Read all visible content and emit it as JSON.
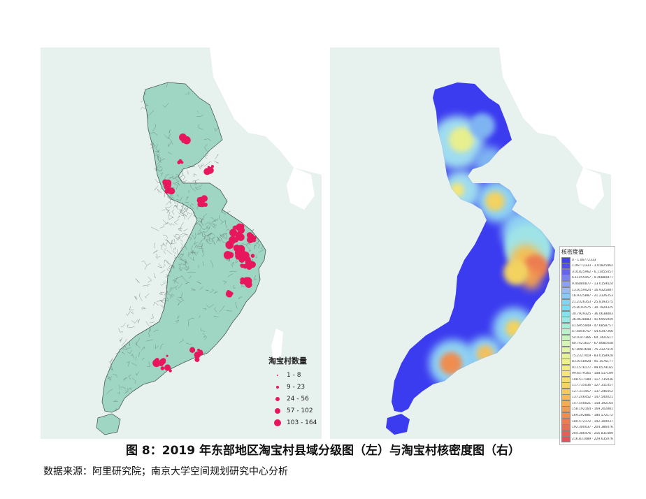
{
  "left_map": {
    "legend_title": "淘宝村数量",
    "legend_items": [
      {
        "label": "1 - 8",
        "size": 2
      },
      {
        "label": "9 - 23",
        "size": 4
      },
      {
        "label": "24 - 56",
        "size": 6
      },
      {
        "label": "57 - 102",
        "size": 8
      },
      {
        "label": "103 - 164",
        "size": 10
      }
    ],
    "colors": {
      "land": "#9fd6c3",
      "boundary": "#5a6d63",
      "dots": "#e8175d",
      "sea": "#e7f1ee",
      "neighbor": "#ffffff"
    }
  },
  "right_map": {
    "legend_title": "核密度值",
    "legend_items": [
      {
        "label": "0 - 1.06772333",
        "color": "#4242e6"
      },
      {
        "label": "1.06772333 - 3.01825962",
        "color": "#5050e8"
      },
      {
        "label": "3.01825962 - 6.11455457",
        "color": "#6565ea"
      },
      {
        "label": "6.11455457 - 9.46880877",
        "color": "#7a82ec"
      },
      {
        "label": "9.46880877 - 13.0159424",
        "color": "#8ea0ee"
      },
      {
        "label": "13.0159424 - 16.9325887",
        "color": "#9db9f0"
      },
      {
        "label": "16.9325887 - 21.2326353",
        "color": "#8fc8f2"
      },
      {
        "label": "21.2326353 - 25.8193575",
        "color": "#7fd5f5"
      },
      {
        "label": "25.8193575 - 30.7929325",
        "color": "#78ddf3"
      },
      {
        "label": "30.7929325 - 36.0638883",
        "color": "#86e3ee"
      },
      {
        "label": "36.0638883 - 41.6955949",
        "color": "#98e8e4"
      },
      {
        "label": "41.6955949 - 47.6858757",
        "color": "#abeed8"
      },
      {
        "label": "47.6858757 - 54.0347366",
        "color": "#bdf1cb"
      },
      {
        "label": "54.0347366 - 60.7421617",
        "color": "#cbf3bf"
      },
      {
        "label": "60.7421617 - 67.8081648",
        "color": "#d6f4b4"
      },
      {
        "label": "67.8081648 - 75.2327419",
        "color": "#e0f3a7"
      },
      {
        "label": "75.2327419 - 83.0158928",
        "color": "#e8f29b"
      },
      {
        "label": "83.0158928 - 91.1576177",
        "color": "#eef08f"
      },
      {
        "label": "91.1576177 - 99.6579165",
        "color": "#f2ec84"
      },
      {
        "label": "99.6579165 - 108.517189",
        "color": "#f4e678"
      },
      {
        "label": "108.517189 - 117.735036",
        "color": "#f5de6c"
      },
      {
        "label": "117.735036 - 127.311457",
        "color": "#f5d462"
      },
      {
        "label": "127.311457 - 137.246452",
        "color": "#f5c95a"
      },
      {
        "label": "137.246452 - 147.540021",
        "color": "#f4bb55"
      },
      {
        "label": "147.540021 - 158.192164",
        "color": "#f3ac52"
      },
      {
        "label": "158.192164 - 169.202881",
        "color": "#f19d51"
      },
      {
        "label": "169.202881 - 180.572172",
        "color": "#ef8d50"
      },
      {
        "label": "180.572172 - 192.300037",
        "color": "#ec7d51"
      },
      {
        "label": "192.300037 - 204.386476",
        "color": "#e86e54"
      },
      {
        "label": "204.386476 - 216.831489",
        "color": "#e46057"
      },
      {
        "label": "216.831489 - 229.635076",
        "color": "#e0545b"
      }
    ],
    "colors": {
      "land": "#3b3bf0",
      "sea": "#e7f1ee",
      "neighbor": "#ffffff"
    }
  },
  "caption": "图 8：2019 年东部地区淘宝村县域分级图（左）与淘宝村核密度图（右）",
  "source": "数据来源：阿里研究院；南京大学空间规划研究中心分析"
}
